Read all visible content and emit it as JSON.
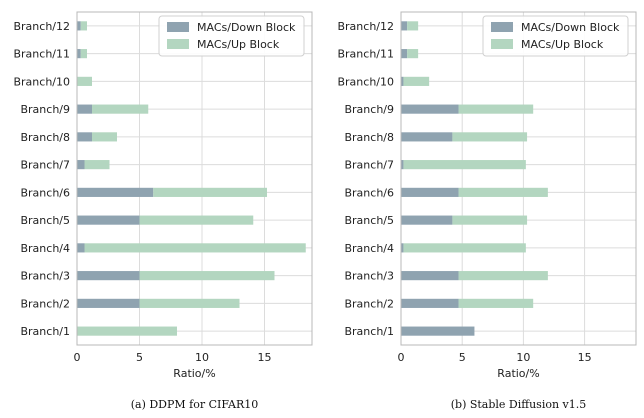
{
  "colors": {
    "down": "#8fa3b0",
    "up": "#b3d6c0",
    "grid": "#dcdcdc",
    "frame": "#b8b8b8"
  },
  "chart_data": [
    {
      "type": "bar",
      "orientation": "horizontal",
      "stacked": true,
      "title": "",
      "caption": "(a) DDPM for CIFAR10",
      "xlabel": "Ratio/%",
      "ylabel": "",
      "xlim": [
        0,
        18.8
      ],
      "xticks": [
        0,
        5,
        10,
        15
      ],
      "grid": true,
      "legend_position": "top-right",
      "categories": [
        "Branch/1",
        "Branch/2",
        "Branch/3",
        "Branch/4",
        "Branch/5",
        "Branch/6",
        "Branch/7",
        "Branch/8",
        "Branch/9",
        "Branch/10",
        "Branch/11",
        "Branch/12"
      ],
      "series": [
        {
          "name": "MACs/Down Block",
          "color_key": "down",
          "values": [
            0.0,
            5.0,
            5.0,
            0.6,
            5.0,
            6.1,
            0.6,
            1.2,
            1.2,
            0.0,
            0.3,
            0.3
          ]
        },
        {
          "name": "MACs/Up Block",
          "color_key": "up",
          "values": [
            8.0,
            8.0,
            10.8,
            17.7,
            9.1,
            9.1,
            2.0,
            2.0,
            4.5,
            1.2,
            0.5,
            0.5
          ]
        }
      ]
    },
    {
      "type": "bar",
      "orientation": "horizontal",
      "stacked": true,
      "title": "",
      "caption": "(b) Stable Diffusion v1.5",
      "xlabel": "Ratio/%",
      "ylabel": "",
      "xlim": [
        0,
        19.2
      ],
      "xticks": [
        0,
        5,
        10,
        15
      ],
      "grid": true,
      "legend_position": "top-right",
      "categories": [
        "Branch/1",
        "Branch/2",
        "Branch/3",
        "Branch/4",
        "Branch/5",
        "Branch/6",
        "Branch/7",
        "Branch/8",
        "Branch/9",
        "Branch/10",
        "Branch/11",
        "Branch/12"
      ],
      "series": [
        {
          "name": "MACs/Down Block",
          "color_key": "down",
          "values": [
            6.0,
            4.7,
            4.7,
            0.2,
            4.2,
            4.7,
            0.2,
            4.2,
            4.7,
            0.2,
            0.5,
            0.5
          ]
        },
        {
          "name": "MACs/Up Block",
          "color_key": "up",
          "values": [
            0.0,
            6.1,
            7.3,
            10.0,
            6.1,
            7.3,
            10.0,
            6.1,
            6.1,
            2.1,
            0.9,
            0.9
          ]
        }
      ]
    }
  ]
}
